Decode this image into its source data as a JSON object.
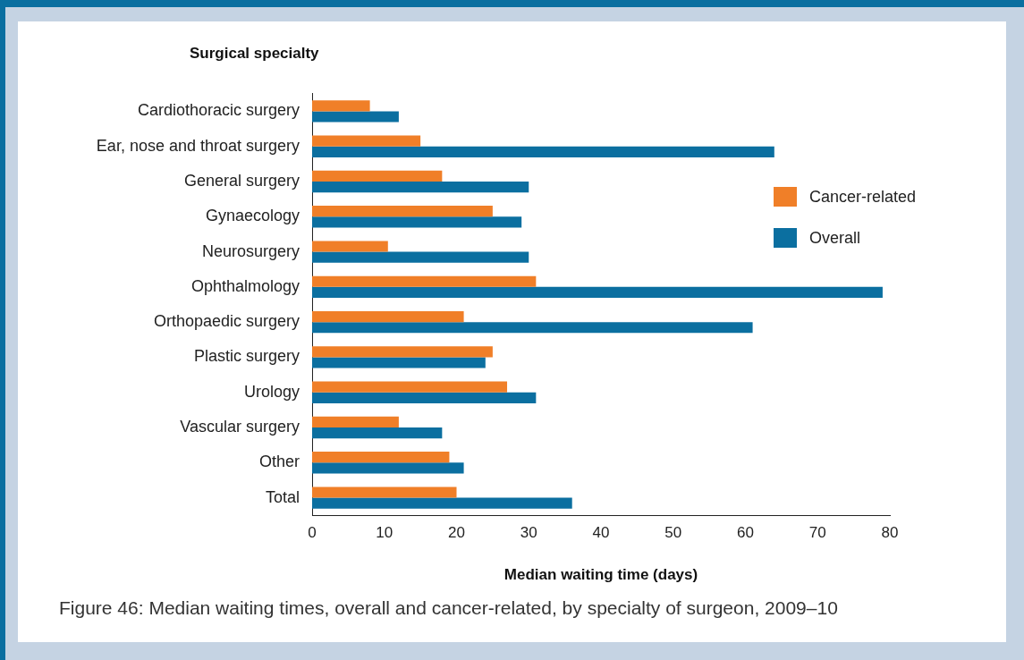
{
  "chart_data": {
    "type": "bar",
    "orientation": "horizontal",
    "title": "Figure 46: Median waiting times, overall and cancer-related, by specialty of surgeon, 2009–10",
    "ylabel": "Surgical specialty",
    "xlabel": "Median waiting time (days)",
    "categories": [
      "Cardiothoracic surgery",
      "Ear, nose and throat surgery",
      "General surgery",
      "Gynaecology",
      "Neurosurgery",
      "Ophthalmology",
      "Orthopaedic surgery",
      "Plastic surgery",
      "Urology",
      "Vascular surgery",
      "Other",
      "Total"
    ],
    "series": [
      {
        "name": "Cancer-related",
        "color": "#f07f28",
        "values": [
          8,
          15,
          18,
          25,
          10.5,
          31,
          21,
          25,
          27,
          12,
          19,
          20
        ]
      },
      {
        "name": "Overall",
        "color": "#0b6fa0",
        "values": [
          12,
          64,
          30,
          29,
          30,
          79,
          61,
          24,
          31,
          18,
          21,
          36
        ]
      }
    ],
    "xlim": [
      0,
      80
    ],
    "xticks": [
      0,
      10,
      20,
      30,
      40,
      50,
      60,
      70,
      80
    ],
    "grid": false,
    "legend": "right"
  }
}
